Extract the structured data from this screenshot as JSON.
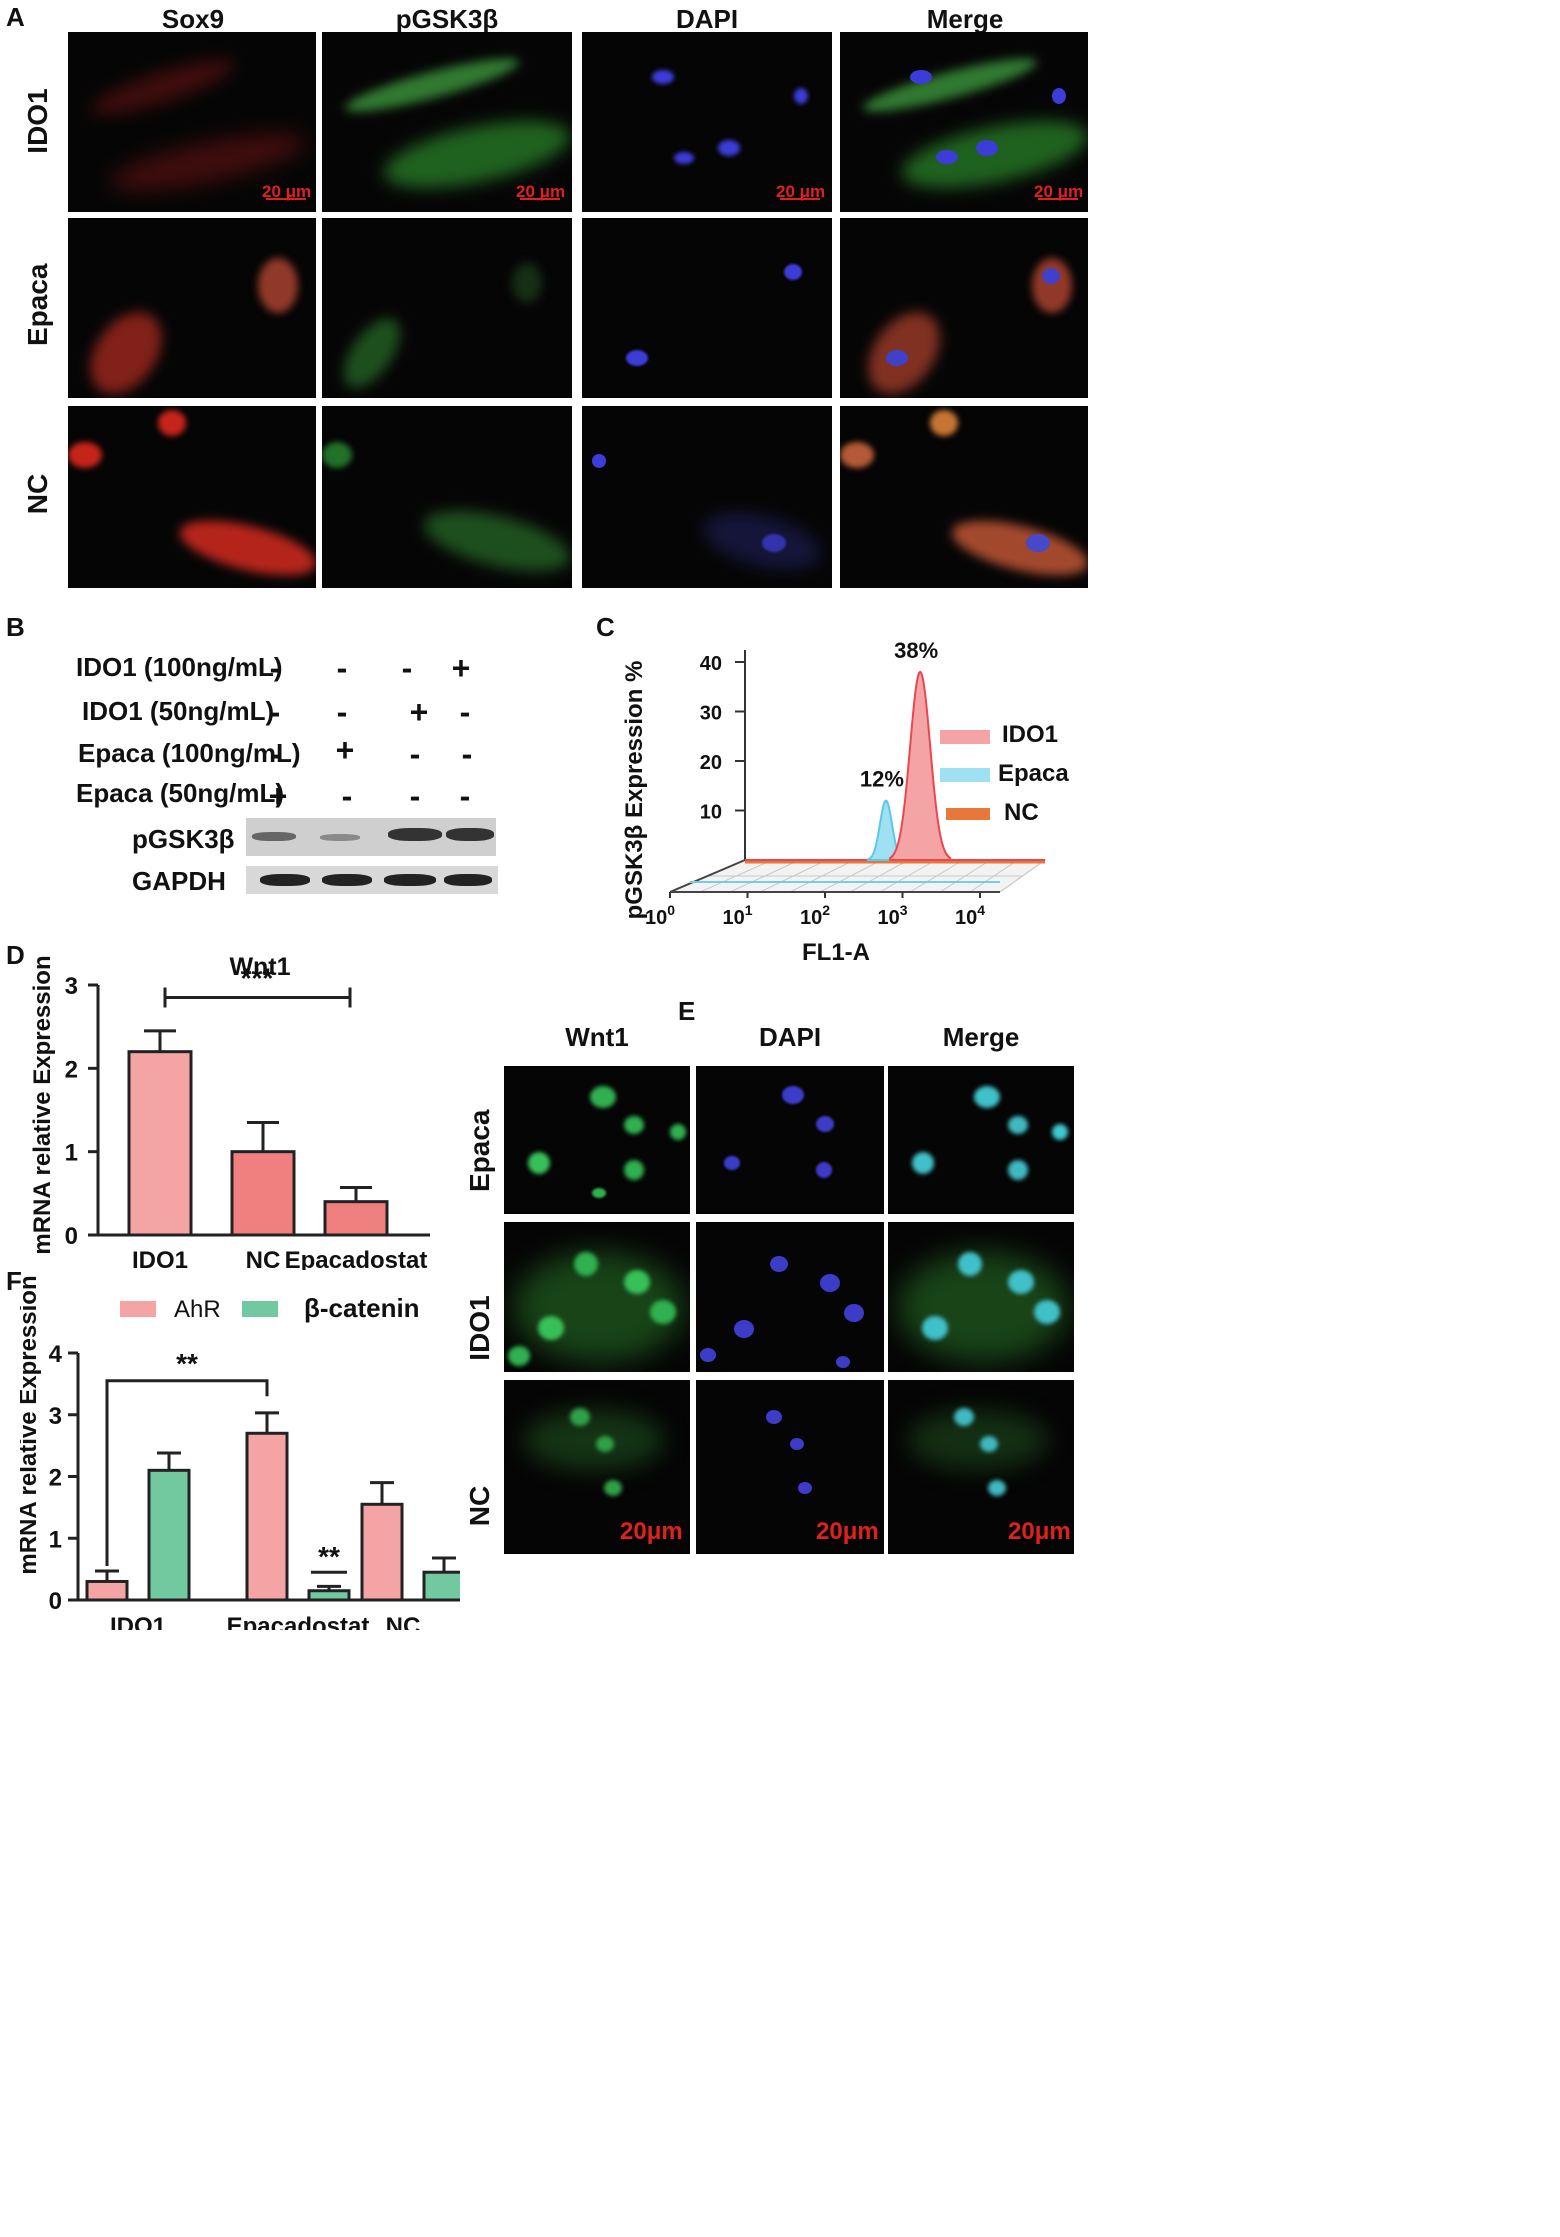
{
  "panel_letters": {
    "a": "A",
    "b": "B",
    "c": "C",
    "d": "D",
    "e": "E",
    "f": "F"
  },
  "panel_a": {
    "columns": [
      "Sox9",
      "pGSK3β",
      "DAPI",
      "Merge"
    ],
    "rows": [
      "IDO1",
      "Epaca",
      "NC"
    ],
    "scale_bar": "20 μm"
  },
  "panel_b": {
    "conditions": [
      {
        "label": "IDO1 (100ng/mL)",
        "signs": [
          "-",
          "-",
          "-",
          "+"
        ]
      },
      {
        "label": "IDO1 (50ng/mL)",
        "signs": [
          "-",
          "-",
          "+",
          "-"
        ]
      },
      {
        "label": "Epaca (100ng/mL)",
        "signs": [
          "-",
          "+",
          "-",
          "-"
        ]
      },
      {
        "label": "Epaca (50ng/mL)",
        "signs": [
          "+",
          "-",
          "-",
          "-"
        ]
      }
    ],
    "blots": [
      "pGSK3β",
      "GAPDH"
    ]
  },
  "panel_e": {
    "columns": [
      "Wnt1",
      "DAPI",
      "Merge"
    ],
    "rows": [
      "Epaca",
      "IDO1",
      "NC"
    ],
    "scale_bar": "20μm"
  },
  "colors": {
    "pink": "#f4a4a4",
    "pink_dark": "#f08080",
    "green": "#72c9a0",
    "blue": "#6fcfe8",
    "red": "#e84850",
    "orange": "#e8783a"
  },
  "chart_data": [
    {
      "id": "C",
      "type": "area",
      "xlabel": "FL1-A",
      "ylabel": "pGSK3β Expression %",
      "xscale": "log",
      "xlim": [
        1,
        10000
      ],
      "ylim": [
        0,
        40
      ],
      "yticks": [
        "10",
        "20",
        "30",
        "40"
      ],
      "xticks": [
        "10",
        "10",
        "10",
        "10",
        "10"
      ],
      "xtick_exp": [
        "0",
        "1",
        "2",
        "3",
        "4"
      ],
      "series": [
        {
          "name": "IDO1",
          "peak_x": 400,
          "peak_y": 38,
          "label": "38%"
        },
        {
          "name": "Epaca",
          "peak_x": 140,
          "peak_y": 12,
          "label": "12%"
        },
        {
          "name": "NC",
          "peak_x": null,
          "peak_y": 0,
          "label": ""
        }
      ],
      "legend": "right"
    },
    {
      "id": "D",
      "type": "bar",
      "title": "Wnt1",
      "ylabel": "mRNA relative Expression",
      "categories": [
        "IDO1",
        "NC",
        "Epacadostat"
      ],
      "values": [
        2.2,
        1.0,
        0.4
      ],
      "errors": [
        0.25,
        0.35,
        0.17
      ],
      "ylim": [
        0,
        3
      ],
      "yticks": [
        "0",
        "1",
        "2",
        "3"
      ],
      "significance": [
        {
          "from": "IDO1",
          "to": "Epacadostat",
          "label": "***"
        }
      ]
    },
    {
      "id": "F",
      "type": "bar",
      "ylabel": "mRNA relative Expression",
      "categories": [
        "IDO1",
        "Epacadostat",
        "NC"
      ],
      "series": [
        {
          "name": "AhR",
          "values": [
            0.3,
            2.7,
            1.55
          ],
          "errors": [
            0.17,
            0.33,
            0.35
          ]
        },
        {
          "name": "β-catenin",
          "values": [
            2.1,
            0.15,
            0.45
          ],
          "errors": [
            0.28,
            0.07,
            0.23
          ]
        }
      ],
      "ylim": [
        0,
        4
      ],
      "yticks": [
        "0",
        "1",
        "2",
        "3",
        "4"
      ],
      "significance": [
        {
          "label": "**"
        },
        {
          "label": "**"
        }
      ],
      "legend": "top"
    }
  ]
}
